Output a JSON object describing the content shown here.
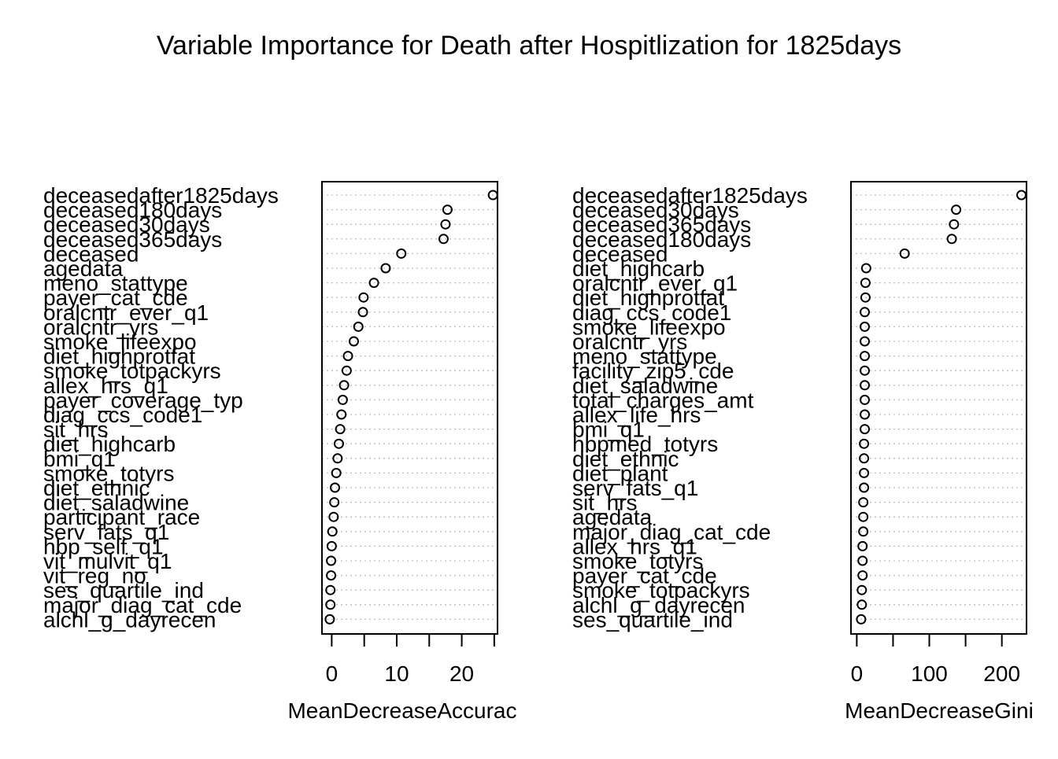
{
  "title": "Variable Importance for Death after Hospitlization for 1825days",
  "chart_data": [
    {
      "type": "scatter",
      "style": "dotchart",
      "xlabel": "MeanDecreaseAccurac",
      "xlim": [
        -1.5,
        25.5
      ],
      "ticks": [
        0,
        5,
        10,
        15,
        20,
        25
      ],
      "tick_labels": [
        {
          "value": 0,
          "label": "0"
        },
        {
          "value": 10,
          "label": "10"
        },
        {
          "value": 20,
          "label": "20"
        }
      ],
      "grid": true,
      "categories": [
        "deceasedafter1825days",
        "deceased180days",
        "deceased30days",
        "deceased365days",
        "deceased",
        "agedata",
        "meno_stattype",
        "payer_cat_cde",
        "oralcntr_ever_q1",
        "oralcntr_yrs",
        "smoke_lifeexpo",
        "diet_highprotfat",
        "smoke_totpackyrs",
        "allex_hrs_q1",
        "payer_coverage_typ",
        "diag_ccs_code1",
        "sit_hrs",
        "diet_highcarb",
        "bmi_q1",
        "smoke_totyrs",
        "diet_ethnic",
        "diet_saladwine",
        "participant_race",
        "serv_fats_q1",
        "hbp_self_q1",
        "vit_mulvit_q1",
        "vit_reg_no",
        "ses_quartile_ind",
        "major_diag_cat_cde",
        "alchl_g_dayrecen"
      ],
      "values": [
        24.8,
        17.8,
        17.5,
        17.2,
        10.7,
        8.3,
        6.5,
        4.9,
        4.8,
        4.1,
        3.4,
        2.5,
        2.3,
        1.9,
        1.7,
        1.5,
        1.3,
        1.1,
        0.9,
        0.7,
        0.5,
        0.4,
        0.3,
        0.1,
        0.0,
        -0.1,
        -0.1,
        -0.2,
        -0.2,
        -0.3
      ]
    },
    {
      "type": "scatter",
      "style": "dotchart",
      "xlabel": "MeanDecreaseGini",
      "xlim": [
        -8,
        234
      ],
      "ticks": [
        0,
        50,
        100,
        150,
        200
      ],
      "tick_labels": [
        {
          "value": 0,
          "label": "0"
        },
        {
          "value": 100,
          "label": "100"
        },
        {
          "value": 200,
          "label": "200"
        }
      ],
      "grid": true,
      "categories": [
        "deceasedafter1825days",
        "deceased30days",
        "deceased365days",
        "deceased180days",
        "deceased",
        "diet_highcarb",
        "oralcntr_ever_q1",
        "diet_highprotfat",
        "diag_ccs_code1",
        "smoke_lifeexpo",
        "oralcntr_yrs",
        "meno_stattype",
        "facility_zip5_cde",
        "diet_saladwine",
        "total_charges_amt",
        "allex_life_hrs",
        "bmi_q1",
        "hbpmed_totyrs",
        "diet_ethnic",
        "diet_plant",
        "serv_fats_q1",
        "sit_hrs",
        "agedata",
        "major_diag_cat_cde",
        "allex_hrs_q1",
        "smoke_totyrs",
        "payer_cat_cde",
        "smoke_totpackyrs",
        "alchl_g_dayrecen",
        "ses_quartile_ind"
      ],
      "values": [
        227,
        137,
        134,
        131,
        66,
        13,
        12,
        12,
        11,
        11,
        11,
        11,
        11,
        11,
        11,
        11,
        11,
        10,
        10,
        10,
        10,
        9,
        9,
        9,
        8,
        8,
        8,
        7,
        7,
        6
      ]
    }
  ]
}
